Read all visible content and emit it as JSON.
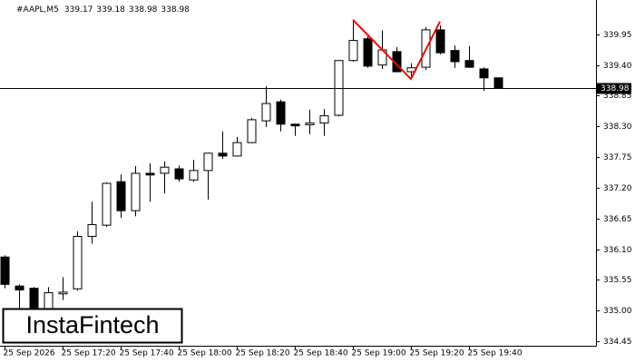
{
  "chart_data": {
    "type": "candlestick",
    "symbol": "#AAPL,M5",
    "header_values": [
      339.17,
      339.18,
      338.98,
      338.98
    ],
    "watermark": "InstaFintech",
    "categories": [
      "25 Sep 2026",
      null,
      null,
      null,
      "25 Sep 17:20",
      null,
      null,
      null,
      "25 Sep 17:40",
      null,
      null,
      null,
      "25 Sep 18:00",
      null,
      null,
      null,
      "25 Sep 18:20",
      null,
      null,
      null,
      "25 Sep 18:40",
      null,
      null,
      null,
      "25 Sep 19:00",
      null,
      null,
      null,
      "25 Sep 19:20",
      null,
      null,
      null,
      "25 Sep 19:40",
      null,
      null
    ],
    "open": [
      335.96,
      335.44,
      335.4,
      335.03,
      335.3,
      335.39,
      336.33,
      336.53,
      337.31,
      336.79,
      337.46,
      337.46,
      337.54,
      337.34,
      337.51,
      337.82,
      337.77,
      338.01,
      338.4,
      338.74,
      338.34,
      338.33,
      338.36,
      338.5,
      339.48,
      339.87,
      339.4,
      339.64,
      339.28,
      339.36,
      340.03,
      339.66,
      339.48,
      339.33,
      339.17
    ],
    "high": [
      335.99,
      335.47,
      335.42,
      335.42,
      335.6,
      336.42,
      336.95,
      337.3,
      337.44,
      337.59,
      337.64,
      337.67,
      337.6,
      337.7,
      337.83,
      338.21,
      338.11,
      338.45,
      339.02,
      338.78,
      338.35,
      338.6,
      338.61,
      339.48,
      340.21,
      339.92,
      340.02,
      339.72,
      339.43,
      340.08,
      340.11,
      339.75,
      339.74,
      339.36,
      339.18
    ],
    "low": [
      335.4,
      335.03,
      334.84,
      334.95,
      335.19,
      335.36,
      336.2,
      336.5,
      336.66,
      336.69,
      336.95,
      337.1,
      337.31,
      337.31,
      336.99,
      337.72,
      337.77,
      338.0,
      338.29,
      338.21,
      338.13,
      338.16,
      338.13,
      338.48,
      339.46,
      339.35,
      339.33,
      339.27,
      339.18,
      339.31,
      339.59,
      339.35,
      339.35,
      338.94,
      338.98
    ],
    "close": [
      335.47,
      335.37,
      335.03,
      335.32,
      335.33,
      336.33,
      336.54,
      337.28,
      336.79,
      337.46,
      337.43,
      337.57,
      337.36,
      337.51,
      337.82,
      337.77,
      338.01,
      338.42,
      338.71,
      338.34,
      338.31,
      338.36,
      338.49,
      339.48,
      339.84,
      339.38,
      339.67,
      339.28,
      339.35,
      340.03,
      339.62,
      339.46,
      339.36,
      339.17,
      338.98
    ],
    "current_price": 338.98,
    "ylim": [
      334.37,
      340.5
    ],
    "yticks": [
      {
        "value": 334.45,
        "label": "334.45"
      },
      {
        "value": 335,
        "label": "335.00"
      },
      335.55,
      {
        "value": 336.1,
        "label": "336.10"
      },
      336.65,
      {
        "value": 337.2,
        "label": "337.20"
      },
      337.75,
      {
        "value": 338.3,
        "label": "338.30"
      },
      338.85,
      {
        "value": 339.4,
        "label": "339.40"
      },
      339.95
    ],
    "pattern": {
      "color": "#ff0000",
      "points": [
        {
          "index": 24,
          "value": 340.21
        },
        {
          "index": 28,
          "value": 339.15
        },
        {
          "index": 30,
          "value": 340.18
        }
      ]
    }
  }
}
